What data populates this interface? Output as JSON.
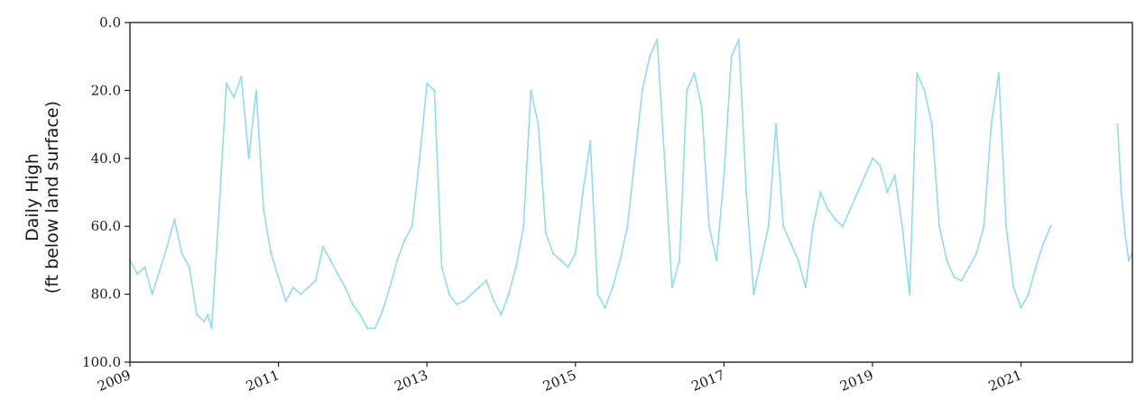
{
  "chart_data": {
    "type": "line",
    "title": "",
    "ylabel": [
      "Daily High",
      "(ft below land surface)"
    ],
    "xlabel": "",
    "y_inverted": true,
    "ylim": [
      0,
      100
    ],
    "xlim": [
      2009.0,
      2022.5
    ],
    "y_ticks": [
      "0.0",
      "20.0",
      "40.0",
      "60.0",
      "80.0",
      "100.0"
    ],
    "y_tick_values": [
      0,
      20,
      40,
      60,
      80,
      100
    ],
    "x_ticks": [
      "2009",
      "2011",
      "2013",
      "2015",
      "2017",
      "2019",
      "2021"
    ],
    "x_tick_values": [
      2009,
      2011,
      2013,
      2015,
      2017,
      2019,
      2021
    ],
    "grid": false,
    "legend": "none",
    "colors": {
      "line": "#8fdcf0",
      "axis": "#222222"
    },
    "series": [
      {
        "x": [
          2009.0,
          2009.1,
          2009.2,
          2009.3,
          2009.4,
          2009.5,
          2009.6,
          2009.7,
          2009.8,
          2009.9,
          2010.0,
          2010.05,
          2010.1,
          2010.2,
          2010.3,
          2010.4,
          2010.5,
          2010.6,
          2010.7,
          2010.8,
          2010.9,
          2011.0,
          2011.1,
          2011.2,
          2011.3,
          2011.4,
          2011.5,
          2011.6,
          2011.7,
          2011.8,
          2011.9,
          2012.0,
          2012.1,
          2012.2,
          2012.3,
          2012.4,
          2012.5,
          2012.6,
          2012.7,
          2012.8,
          2012.9,
          2013.0,
          2013.1,
          2013.2,
          2013.3,
          2013.4,
          2013.5,
          2013.6,
          2013.7,
          2013.8,
          2013.9,
          2014.0,
          2014.1,
          2014.2,
          2014.3,
          2014.4,
          2014.5,
          2014.6,
          2014.7,
          2014.8,
          2014.9,
          2015.0,
          2015.1,
          2015.2,
          2015.3,
          2015.4,
          2015.5,
          2015.6,
          2015.7,
          2015.8,
          2015.9,
          2016.0,
          2016.1,
          2016.2,
          2016.3,
          2016.4,
          2016.5,
          2016.6,
          2016.7,
          2016.8,
          2016.9,
          2017.0,
          2017.1,
          2017.2,
          2017.3,
          2017.4,
          2017.5,
          2017.6,
          2017.7,
          2017.8,
          2017.9,
          2018.0,
          2018.1,
          2018.2,
          2018.3,
          2018.4,
          2018.5,
          2018.6,
          2018.7,
          2018.8,
          2018.9,
          2019.0,
          2019.1,
          2019.2,
          2019.3,
          2019.4,
          2019.5,
          2019.6,
          2019.7,
          2019.8,
          2019.9,
          2020.0,
          2020.1,
          2020.2,
          2020.3,
          2020.4,
          2020.5,
          2020.6,
          2020.7,
          2020.8,
          2020.9,
          2021.0,
          2021.1,
          2021.2,
          2021.3,
          2021.4,
          2022.3,
          2022.35,
          2022.4,
          2022.45,
          2022.5
        ],
        "values": [
          70,
          74,
          72,
          80,
          73,
          66,
          58,
          68,
          72,
          86,
          88,
          86,
          90,
          55,
          18,
          22,
          16,
          40,
          20,
          55,
          68,
          75,
          82,
          78,
          80,
          78,
          76,
          66,
          70,
          74,
          78,
          83,
          86,
          90,
          90,
          85,
          78,
          70,
          64,
          60,
          40,
          18,
          20,
          72,
          80,
          83,
          82,
          80,
          78,
          76,
          82,
          86,
          80,
          72,
          60,
          20,
          30,
          62,
          68,
          70,
          72,
          68,
          50,
          35,
          80,
          84,
          78,
          70,
          60,
          40,
          20,
          10,
          5,
          40,
          78,
          70,
          20,
          15,
          25,
          60,
          70,
          45,
          10,
          5,
          50,
          80,
          70,
          60,
          30,
          60,
          65,
          70,
          78,
          60,
          50,
          55,
          58,
          60,
          55,
          50,
          45,
          40,
          42,
          50,
          45,
          60,
          80,
          15,
          20,
          30,
          60,
          70,
          75,
          76,
          72,
          68,
          60,
          30,
          15,
          60,
          78,
          84,
          80,
          72,
          65,
          60,
          30,
          50,
          62,
          70,
          68
        ]
      }
    ]
  }
}
